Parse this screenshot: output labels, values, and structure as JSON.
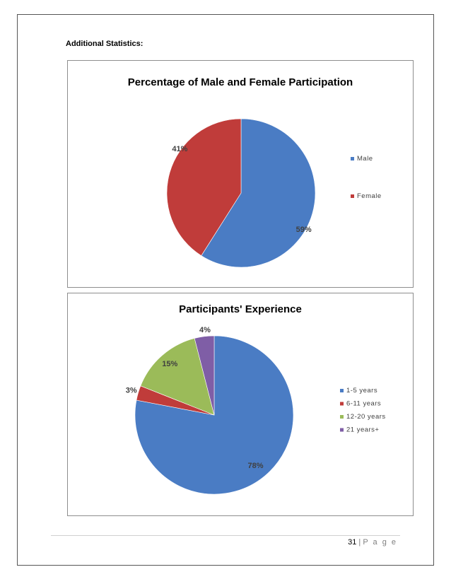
{
  "heading": "Additional Statistics:",
  "footer": {
    "page_number": "31",
    "separator": "|",
    "page_label": "P a g e"
  },
  "chart_data": [
    {
      "type": "pie",
      "title": "Percentage of Male and Female Participation",
      "categories": [
        "Male",
        "Female"
      ],
      "values": [
        59,
        41
      ],
      "data_labels": [
        "59%",
        "41%"
      ],
      "colors": [
        "#4a7cc4",
        "#c03c3a"
      ],
      "legend_position": "right"
    },
    {
      "type": "pie",
      "title": "Participants' Experience",
      "categories": [
        "1-5 years",
        "6-11 years",
        "12-20 years",
        "21 years+"
      ],
      "values": [
        78,
        3,
        15,
        4
      ],
      "data_labels": [
        "78%",
        "3%",
        "15%",
        "4%"
      ],
      "colors": [
        "#4a7cc4",
        "#c03c3a",
        "#9bbb59",
        "#7f5ea6"
      ],
      "legend_position": "right"
    }
  ]
}
